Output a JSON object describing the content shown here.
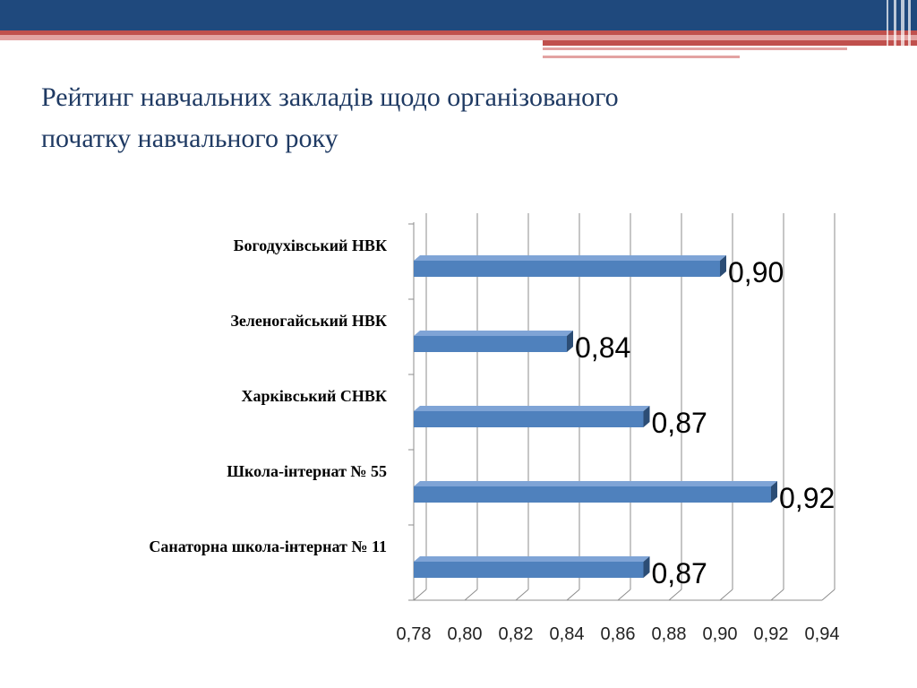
{
  "slide": {
    "title_line1": "Рейтинг навчальних закладів щодо організованого",
    "title_line2": "початку навчального року"
  },
  "colors": {
    "header_band": "#1f497d",
    "accent_red": "#c0504d",
    "bar_front": "#4f81bd",
    "bar_top": "#7fa4d6",
    "bar_side": "#2c4d75",
    "gridline": "#8c8c8c"
  },
  "chart_data": {
    "type": "bar",
    "orientation": "horizontal",
    "title": "",
    "xlabel": "",
    "ylabel": "",
    "categories": [
      "Богодухівський НВК",
      "Зеленогайський НВК",
      "Харківський СНВК",
      "Школа-інтернат № 55",
      "Санаторна школа-інтернат № 11"
    ],
    "values": [
      0.9,
      0.84,
      0.87,
      0.92,
      0.87
    ],
    "value_labels": [
      "0,90",
      "0,84",
      "0,87",
      "0,92",
      "0,87"
    ],
    "xlim": [
      0.78,
      0.94
    ],
    "x_ticks": [
      0.78,
      0.8,
      0.82,
      0.84,
      0.86,
      0.88,
      0.9,
      0.92,
      0.94
    ],
    "x_tick_labels": [
      "0,78",
      "0,80",
      "0,82",
      "0,84",
      "0,86",
      "0,88",
      "0,90",
      "0,92",
      "0,94"
    ],
    "grid": true,
    "legend": "none",
    "style": "3d"
  }
}
